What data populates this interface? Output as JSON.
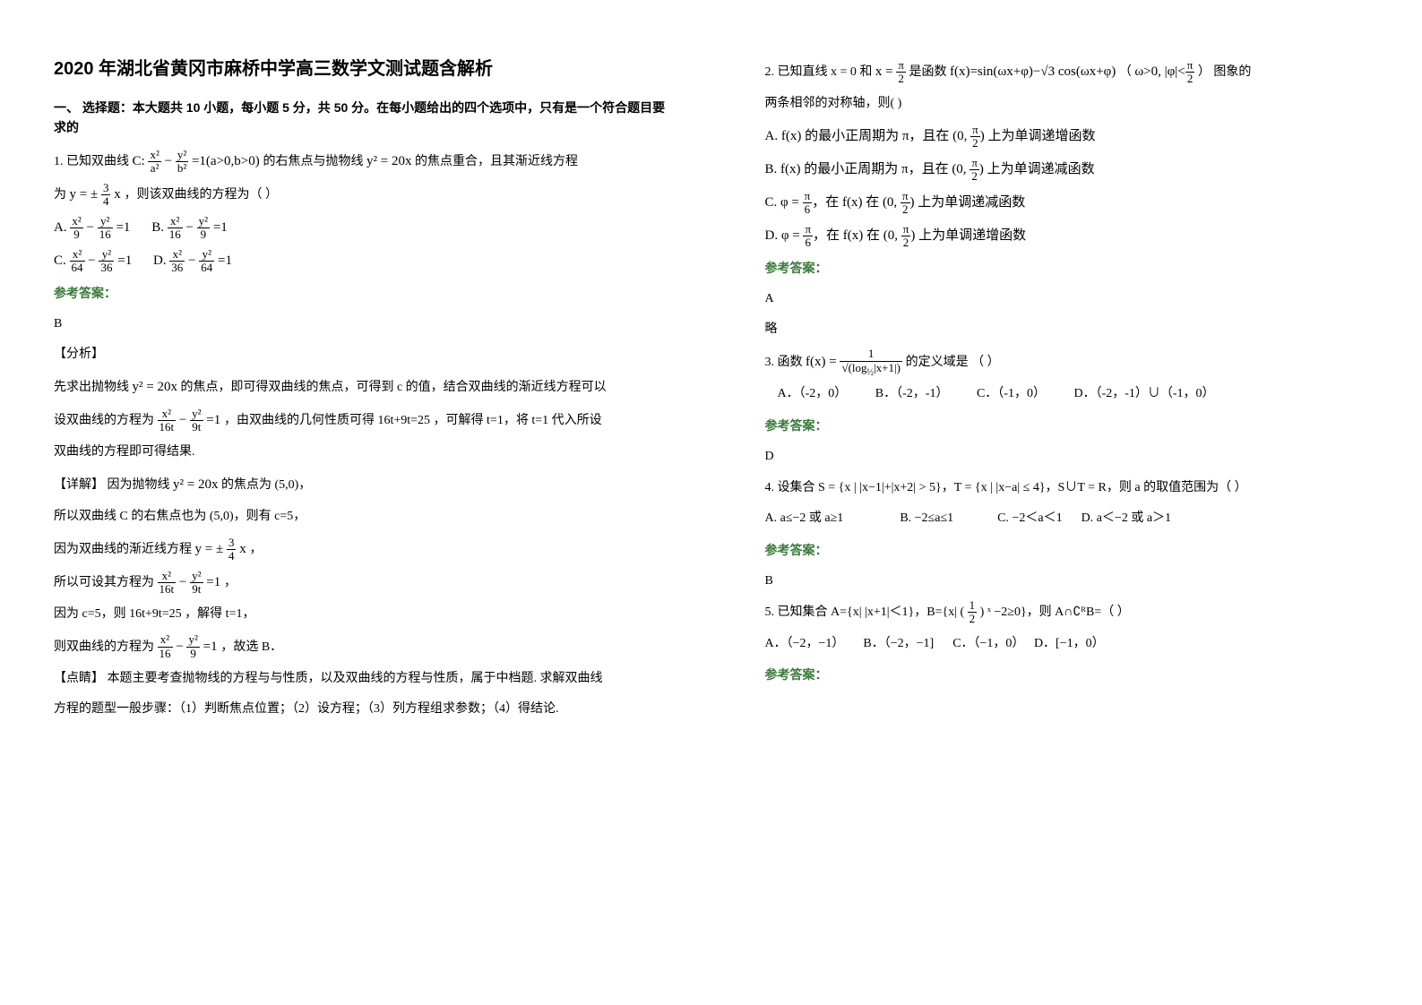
{
  "title": "2020 年湖北省黄冈市麻桥中学高三数学文测试题含解析",
  "section1_head": "一、 选择题：本大题共 10 小题，每小题 5 分，共 50 分。在每小题给出的四个选项中，只有是一个符合题目要求的",
  "q1": {
    "stem_a": "1. 已知双曲线 ",
    "stem_b": " 的右焦点与抛物线 ",
    "stem_c": " 的焦点重合，且其渐近线方程",
    "stem_d": "为 ",
    "stem_e": "，则该双曲线的方程为（      ）",
    "optA_lbl": "A.",
    "optB_lbl": "B.",
    "optC_lbl": "C.",
    "optD_lbl": "D.",
    "ans_label": "参考答案：",
    "ans": "B",
    "analysis_label": "【分析】",
    "analysis_1": "先求出抛物线 ",
    "analysis_1b": " 的焦点，即可得双曲线的焦点，可得到 c 的值，结合双曲线的渐近线方程可以",
    "analysis_2a": "设双曲线的方程为 ",
    "analysis_2b": "，由双曲线的几何性质可得 16t+9t=25 ，可解得 t=1，将 t=1 代入所设",
    "analysis_3": "双曲线的方程即可得结果.",
    "detail_label": "【详解】",
    "detail_1": "因为抛物线 ",
    "detail_1b": " 的焦点为 (5,0)，",
    "detail_2": "所以双曲线 C 的右焦点也为 (5,0)，则有 c=5，",
    "detail_3a": "因为双曲线的渐近线方程 ",
    "detail_3b": "，",
    "detail_4a": "所以可设其方程为 ",
    "detail_4b": "，",
    "detail_5": "因为 c=5，则 16t+9t=25 ，解得 t=1，",
    "detail_6a": "则双曲线的方程为 ",
    "detail_6b": "，故选 B．",
    "comment_label": "【点睛】",
    "comment_1": "本题主要考查抛物线的方程与与性质，以及双曲线的方程与性质，属于中档题. 求解双曲线",
    "comment_2": "方程的题型一般步骤：（1）判断焦点位置；（2）设方程；（3）列方程组求参数；（4）得结论."
  },
  "q2": {
    "stem_a": "2. 已知直线 x = 0 和 ",
    "stem_b": " 是函数 ",
    "stem_c": "（",
    "stem_d": "）       图象的",
    "stem_e": "两条相邻的对称轴，则(    )",
    "optA": "A. f(x) 的最小正周期为 π，且在 (0, π/2) 上为单调递增函数",
    "optB": "B. f(x) 的最小正周期为 π，且在 (0, π/2) 上为单调递减函数",
    "optC": "C. φ = π/6，在 f(x) 在 (0, π/2) 上为单调递减函数",
    "optD": "D. φ = π/6，在 f(x) 在 (0, π/2) 上为单调递增函数",
    "ans_label": "参考答案：",
    "ans": "A",
    "note": "略"
  },
  "q3": {
    "stem_a": "3. 函数 ",
    "stem_b": " 的定义域是                                         （   ）",
    "optA": "A．（-2，0）",
    "optB": "B．（-2，-1）",
    "optC": "C．（-1，0）",
    "optD": "D．（-2，-1）∪（-1，0）",
    "ans_label": "参考答案：",
    "ans": "D"
  },
  "q4": {
    "stem_a": "4. 设集合 S = {x | |x−1|+|x+2| > 5}，T = {x | |x−a| ≤ 4}，S∪T = R，则 a 的取值范围为（     ）",
    "optA": "A. a≤−2 或 a≥1",
    "optB": "B. −2≤a≤1",
    "optC": "C. −2＜a＜1",
    "optD": "D. a＜−2 或 a＞1",
    "ans_label": "参考答案：",
    "ans": "B"
  },
  "q5": {
    "stem_a": "5. 已知集合 A={x| |x+1|＜1}，B={x| (",
    "stem_b": ") ˣ −2≥0}，则 A∩∁ᴿB=（    ）",
    "optA": "A．（−2，−1）",
    "optB": "B．（−2，−1]",
    "optC": "C．（−1，0）",
    "optD": "D．[−1，0）",
    "ans_label": "参考答案："
  },
  "colors": {
    "answer_green": "#3a7a3a",
    "text_black": "#000000"
  }
}
